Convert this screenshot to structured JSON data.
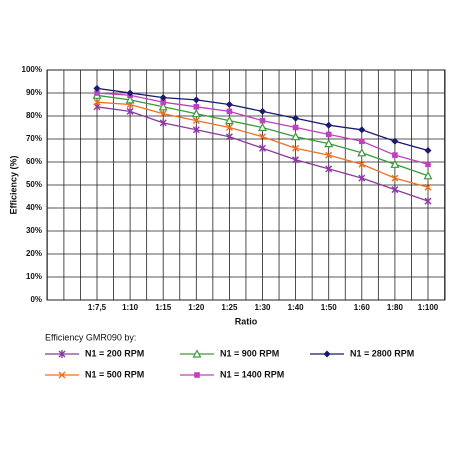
{
  "chart_data": {
    "type": "line",
    "y_label": "Efficiency (%)",
    "x_label": "Ratio",
    "legend_title": "Efficiency GMR090 by:",
    "categories": [
      "1:7,5",
      "1:10",
      "1:15",
      "1:20",
      "1:25",
      "1:30",
      "1:40",
      "1:50",
      "1:60",
      "1:80",
      "1:100"
    ],
    "ylim": [
      0,
      100
    ],
    "yticks": [
      {
        "value": 0,
        "label": "0%"
      },
      {
        "value": 10,
        "label": "10%"
      },
      {
        "value": 20,
        "label": "20%"
      },
      {
        "value": 30,
        "label": "30%"
      },
      {
        "value": 40,
        "label": "40%"
      },
      {
        "value": 50,
        "label": "50%"
      },
      {
        "value": 60,
        "label": "60%"
      },
      {
        "value": 70,
        "label": "70%"
      },
      {
        "value": 80,
        "label": "80%"
      },
      {
        "value": 90,
        "label": "90%"
      },
      {
        "value": 100,
        "label": "100%"
      }
    ],
    "grid": true,
    "series": [
      {
        "name": "N1 = 200  RPM",
        "color": "#8b3a9e",
        "values": [
          84,
          82,
          77,
          74,
          71,
          66,
          61,
          57,
          53,
          48,
          43
        ]
      },
      {
        "name": "N1 = 500  RPM",
        "color": "#f07020",
        "values": [
          86,
          85,
          81,
          78,
          75,
          71,
          66,
          63,
          59,
          53,
          49
        ]
      },
      {
        "name": "N1 = 900  RPM",
        "color": "#3a9a3a",
        "values": [
          89,
          87,
          84,
          81,
          78,
          75,
          71,
          68,
          64,
          59,
          54
        ]
      },
      {
        "name": "N1 = 1400  RPM",
        "color": "#c040c0",
        "values": [
          90,
          89,
          86,
          84,
          82,
          78,
          75,
          72,
          69,
          63,
          59
        ]
      },
      {
        "name": "N1 = 2800  RPM",
        "color": "#1a1a70",
        "values": [
          92,
          90,
          88,
          87,
          85,
          82,
          79,
          76,
          74,
          69,
          65
        ]
      }
    ]
  }
}
